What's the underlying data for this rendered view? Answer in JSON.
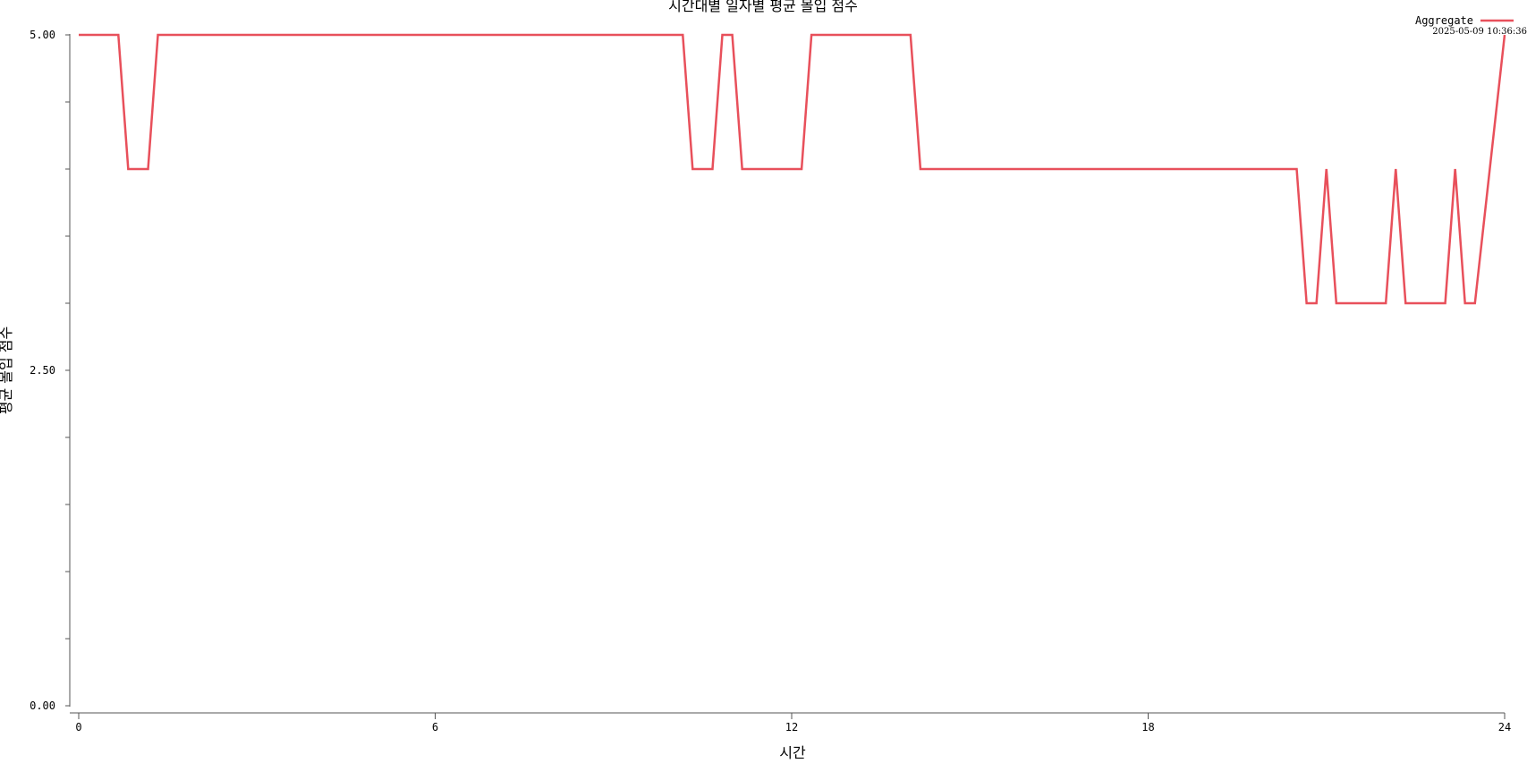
{
  "chart_data": {
    "type": "line",
    "title": "시간대별 일자별 평균 몰입 점수",
    "xlabel": "시간",
    "ylabel": "평균 몰입 점수",
    "timestamp": "2025-05-09 10:36:36",
    "xlim": [
      0,
      24
    ],
    "ylim": [
      0,
      5
    ],
    "x_ticks": [
      0,
      6,
      12,
      18,
      24
    ],
    "x_tick_labels": [
      "0",
      "6",
      "12",
      "18",
      "24"
    ],
    "y_ticks": [
      0,
      0.5,
      1,
      1.5,
      2,
      2.5,
      3,
      3.5,
      4,
      4.5,
      5
    ],
    "y_tick_labels": [
      {
        "value": 0,
        "label": "0.00"
      },
      {
        "value": 2.5,
        "label": "2.50"
      },
      {
        "value": 5,
        "label": "5.00"
      }
    ],
    "legend_position": "top-right",
    "grid": false,
    "series": [
      {
        "name": "Aggregate",
        "color": "#e8505b",
        "x": [
          0,
          0.667,
          0.833,
          1.167,
          1.333,
          10.167,
          10.333,
          10.667,
          10.833,
          11.0,
          11.167,
          12.167,
          12.333,
          14.0,
          14.167,
          20.5,
          20.667,
          20.833,
          21.0,
          21.167,
          22.0,
          22.167,
          22.333,
          23.0,
          23.167,
          23.333,
          23.5,
          24.0
        ],
        "y": [
          5,
          5,
          4,
          4,
          5,
          5,
          4,
          4,
          5,
          5,
          4,
          4,
          5,
          5,
          4,
          4,
          3,
          3,
          4,
          3,
          3,
          4,
          3,
          3,
          4,
          3,
          3,
          5
        ]
      }
    ]
  }
}
